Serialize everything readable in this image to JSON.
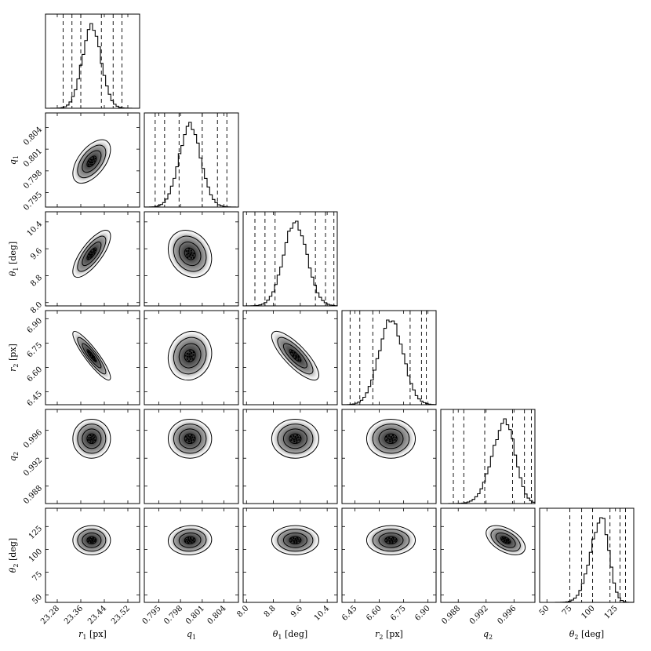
{
  "chart_data": {
    "type": "corner",
    "parameters": [
      {
        "label": "r₁ [px]",
        "sym": "r",
        "sub": "1",
        "unit": "[px]",
        "range": [
          23.24,
          23.56
        ],
        "ticks": [
          "23.28",
          "23.36",
          "23.44",
          "23.52"
        ],
        "mean": 23.397,
        "sd": 0.032,
        "quantile_lines": [
          23.3,
          23.33,
          23.36,
          23.43,
          23.47,
          23.5
        ]
      },
      {
        "label": "q₁",
        "sym": "q",
        "sub": "1",
        "unit": "",
        "range": [
          0.793,
          0.806
        ],
        "ticks": [
          "0.795",
          "0.798",
          "0.801",
          "0.804"
        ],
        "mean": 0.7993,
        "sd": 0.0015,
        "quantile_lines": [
          0.7945,
          0.7958,
          0.7978,
          0.801,
          0.8031,
          0.8044
        ]
      },
      {
        "label": "θ₁ [deg]",
        "sym": "θ",
        "sub": "1",
        "unit": "[deg]",
        "range": [
          7.9,
          10.7
        ],
        "ticks": [
          "8.0",
          "8.8",
          "9.6",
          "10.4"
        ],
        "mean": 9.45,
        "sd": 0.35,
        "quantile_lines": [
          8.25,
          8.55,
          8.85,
          10.05,
          10.35,
          10.6
        ]
      },
      {
        "label": "r₂ [px]",
        "sym": "r",
        "sub": "2",
        "unit": "[px]",
        "range": [
          6.37,
          6.95
        ],
        "ticks": [
          "6.45",
          "6.60",
          "6.75",
          "6.90"
        ],
        "mean": 6.672,
        "sd": 0.075,
        "quantile_lines": [
          6.42,
          6.48,
          6.56,
          6.79,
          6.86,
          6.89
        ]
      },
      {
        "label": "q₂",
        "sym": "q",
        "sub": "2",
        "unit": "",
        "range": [
          0.9855,
          0.999
        ],
        "ticks": [
          "0.988",
          "0.992",
          "0.996"
        ],
        "mean": 0.9948,
        "sd": 0.0014,
        "quantile_lines": [
          0.9873,
          0.9888,
          0.9918,
          0.9958,
          0.9975,
          0.9985
        ]
      },
      {
        "label": "θ₂ [deg]",
        "sym": "θ",
        "sub": "2",
        "unit": "[deg]",
        "range": [
          42,
          145
        ],
        "ticks": [
          "50",
          "75",
          "100",
          "125"
        ],
        "mean": 110,
        "sd": 8,
        "quantile_lines": [
          75,
          88,
          100,
          119,
          130,
          136
        ]
      }
    ],
    "tick_labels_left": {
      "rows": [
        [
          "0.795",
          "0.798",
          "0.801",
          "0.804"
        ],
        [
          "8.0",
          "8.8",
          "9.6",
          "10.4"
        ],
        [
          "6.45",
          "6.60",
          "6.75",
          "6.90"
        ],
        [
          "0.988",
          "0.992",
          "0.996"
        ],
        [
          "50",
          "75",
          "100",
          "125"
        ]
      ]
    },
    "correlations": [
      {
        "row": 1,
        "col": 0,
        "rho": 0.55
      },
      {
        "row": 2,
        "col": 0,
        "rho": 0.75
      },
      {
        "row": 2,
        "col": 1,
        "rho": -0.2
      },
      {
        "row": 3,
        "col": 0,
        "rho": -0.9
      },
      {
        "row": 3,
        "col": 1,
        "rho": 0.1
      },
      {
        "row": 3,
        "col": 2,
        "rho": -0.8
      },
      {
        "row": 4,
        "col": 0,
        "rho": 0.0
      },
      {
        "row": 4,
        "col": 1,
        "rho": 0.0
      },
      {
        "row": 4,
        "col": 2,
        "rho": 0.0
      },
      {
        "row": 4,
        "col": 3,
        "rho": 0.0
      },
      {
        "row": 5,
        "col": 0,
        "rho": 0.0
      },
      {
        "row": 5,
        "col": 1,
        "rho": 0.05
      },
      {
        "row": 5,
        "col": 2,
        "rho": 0.0
      },
      {
        "row": 5,
        "col": 3,
        "rho": 0.0
      },
      {
        "row": 5,
        "col": 4,
        "rho": -0.5
      }
    ],
    "contour_levels_sigma": [
      0.5,
      1.0,
      1.5,
      2.0
    ],
    "diagonal": "histogram",
    "grid": false
  }
}
